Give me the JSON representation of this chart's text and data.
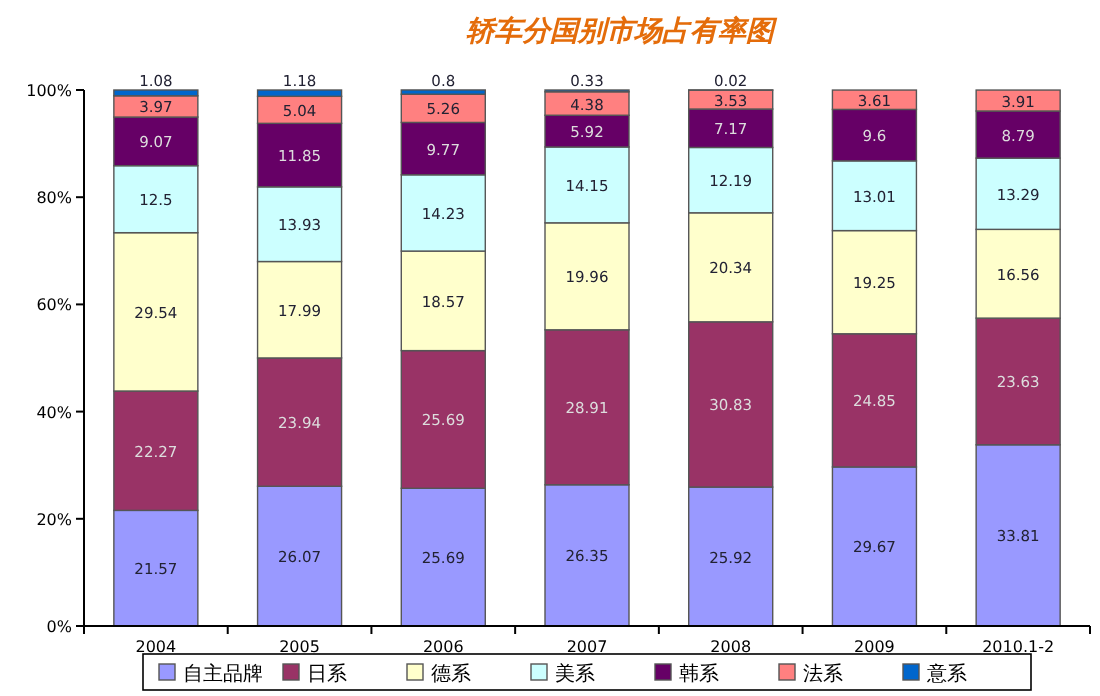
{
  "chart_data": {
    "type": "bar",
    "stacked": true,
    "title": "轿车分国别市场占有率图",
    "categories": [
      "2004",
      "2005",
      "2006",
      "2007",
      "2008",
      "2009",
      "2010.1-2"
    ],
    "series": [
      {
        "name": "自主品牌",
        "color": "#9999ff",
        "values": [
          21.57,
          26.07,
          25.69,
          26.35,
          25.92,
          29.67,
          33.81
        ]
      },
      {
        "name": "日系",
        "color": "#993366",
        "values": [
          22.27,
          23.94,
          25.69,
          28.91,
          30.83,
          24.85,
          23.63
        ]
      },
      {
        "name": "德系",
        "color": "#ffffcc",
        "values": [
          29.54,
          17.99,
          18.57,
          19.96,
          20.34,
          19.25,
          16.56
        ]
      },
      {
        "name": "美系",
        "color": "#ccffff",
        "values": [
          12.5,
          13.93,
          14.23,
          14.15,
          12.19,
          13.01,
          13.29
        ]
      },
      {
        "name": "韩系",
        "color": "#660066",
        "values": [
          9.07,
          11.85,
          9.77,
          5.92,
          7.17,
          9.6,
          8.79
        ]
      },
      {
        "name": "法系",
        "color": "#ff8080",
        "values": [
          3.97,
          5.04,
          5.26,
          4.38,
          3.53,
          3.61,
          3.91
        ]
      },
      {
        "name": "意系",
        "color": "#0066cc",
        "values": [
          1.08,
          1.18,
          0.8,
          0.33,
          0.02,
          null,
          null
        ]
      }
    ],
    "ylim": [
      0,
      100
    ],
    "yticks": [
      {
        "value": 0,
        "label": "0%"
      },
      {
        "value": 20,
        "label": "20%"
      },
      {
        "value": 40,
        "label": "40%"
      },
      {
        "value": 60,
        "label": "60%"
      },
      {
        "value": 80,
        "label": "80%"
      },
      {
        "value": 100,
        "label": "100%"
      }
    ],
    "data_labels": true,
    "legend": "bottom",
    "grid": false
  }
}
